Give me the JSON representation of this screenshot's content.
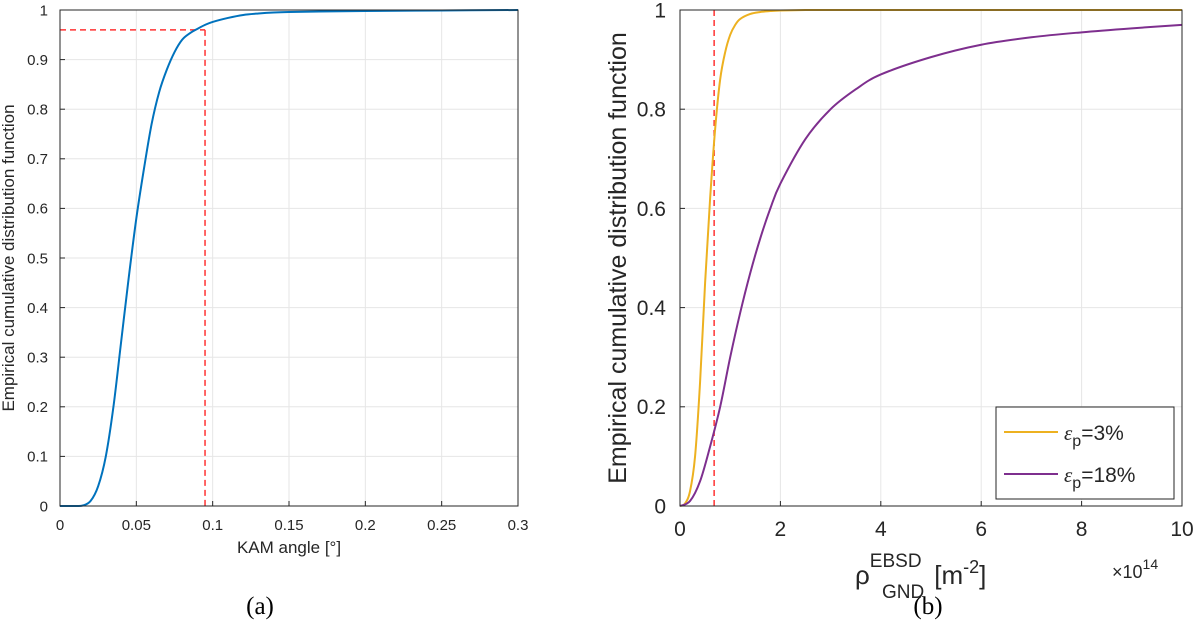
{
  "chart_data": [
    {
      "type": "line",
      "panel_label": "(a)",
      "xlabel": "KAM angle [°]",
      "ylabel": "Empirical cumulative distribution function",
      "xlim": [
        0,
        0.3
      ],
      "ylim": [
        0,
        1
      ],
      "x_ticks": [
        "0",
        "0.05",
        "0.1",
        "0.15",
        "0.2",
        "0.25",
        "0.3"
      ],
      "y_ticks": [
        "0",
        "0.1",
        "0.2",
        "0.3",
        "0.4",
        "0.5",
        "0.6",
        "0.7",
        "0.8",
        "0.9",
        "1"
      ],
      "grid": true,
      "series": [
        {
          "color": "#0072BD",
          "x": [
            0,
            0.01,
            0.015,
            0.02,
            0.025,
            0.03,
            0.035,
            0.04,
            0.045,
            0.05,
            0.055,
            0.06,
            0.065,
            0.07,
            0.075,
            0.08,
            0.085,
            0.09,
            0.095,
            0.1,
            0.11,
            0.12,
            0.13,
            0.14,
            0.15,
            0.17,
            0.2,
            0.25,
            0.3
          ],
          "y": [
            0,
            0,
            0.001,
            0.01,
            0.04,
            0.1,
            0.2,
            0.33,
            0.46,
            0.58,
            0.68,
            0.77,
            0.835,
            0.88,
            0.915,
            0.94,
            0.953,
            0.962,
            0.97,
            0.976,
            0.984,
            0.99,
            0.993,
            0.995,
            0.996,
            0.997,
            0.998,
            0.999,
            1.0
          ]
        }
      ],
      "reference_lines": {
        "color": "#FF3333",
        "x": 0.095,
        "y": 0.96
      }
    },
    {
      "type": "line",
      "panel_label": "(b)",
      "xlabel_base": "ρ",
      "xlabel_sup": "EBSD",
      "xlabel_sub": "GND",
      "xlabel_unit": "[m",
      "xlabel_unit_exp": "-2",
      "xlabel_unit_close": "]",
      "x_multiplier_base": "×10",
      "x_multiplier_exp": "14",
      "ylabel": "Empirical cumulative distribution function",
      "xlim": [
        0,
        10
      ],
      "ylim": [
        0,
        1
      ],
      "x_ticks": [
        "0",
        "2",
        "4",
        "6",
        "8",
        "10"
      ],
      "y_ticks": [
        "0",
        "0.2",
        "0.4",
        "0.6",
        "0.8",
        "1"
      ],
      "grid": true,
      "legend_position": "bottom-right",
      "series": [
        {
          "name_symbol": "ε",
          "name_sub": "p",
          "name_value": "=3%",
          "color": "#EDB120",
          "x": [
            0,
            0.1,
            0.2,
            0.3,
            0.4,
            0.5,
            0.6,
            0.7,
            0.8,
            0.9,
            1.0,
            1.1,
            1.2,
            1.4,
            1.6,
            1.8,
            2.0,
            2.5,
            3,
            4,
            6,
            8,
            10
          ],
          "y": [
            0,
            0.005,
            0.03,
            0.1,
            0.25,
            0.45,
            0.62,
            0.76,
            0.86,
            0.915,
            0.95,
            0.97,
            0.982,
            0.992,
            0.996,
            0.998,
            0.999,
            1.0,
            1.0,
            1.0,
            1.0,
            1.0,
            1.0
          ]
        },
        {
          "name_symbol": "ε",
          "name_sub": "p",
          "name_value": "=18%",
          "color": "#7E2F8E",
          "x": [
            0,
            0.2,
            0.4,
            0.6,
            0.8,
            1.0,
            1.2,
            1.4,
            1.6,
            1.8,
            2.0,
            2.5,
            3.0,
            3.5,
            4.0,
            5.0,
            6.0,
            7.0,
            8.0,
            9.0,
            10.0
          ],
          "y": [
            0,
            0.01,
            0.05,
            0.12,
            0.2,
            0.3,
            0.39,
            0.47,
            0.54,
            0.6,
            0.65,
            0.74,
            0.8,
            0.84,
            0.87,
            0.905,
            0.93,
            0.945,
            0.955,
            0.963,
            0.97
          ]
        }
      ],
      "reference_lines": {
        "color": "#FF3333",
        "x": 0.68
      }
    }
  ]
}
